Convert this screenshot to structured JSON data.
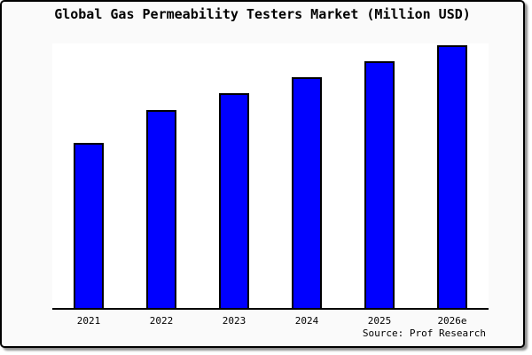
{
  "title": "Global Gas Permeability Testers Market (Million USD)",
  "source_note": "Source: Prof Research",
  "colors": {
    "card_background": "#fafafa",
    "plot_background": "#ffffff",
    "bar_fill": "#0000ff",
    "bar_border": "#000000",
    "axis": "#000000",
    "text": "#000000",
    "shadow": "#8f8f8f"
  },
  "chart_data": {
    "type": "bar",
    "title": "Global Gas Permeability Testers Market (Million USD)",
    "categories": [
      "2021",
      "2022",
      "2023",
      "2024",
      "2025",
      "2026e"
    ],
    "values": [
      62.3,
      74.8,
      81.3,
      87.3,
      93.3,
      99.5
    ],
    "value_basis": "relative bar height as percent of plot height; no numeric y-axis shown in chart",
    "xlabel": "",
    "ylabel": "",
    "ylim": [
      0,
      100
    ],
    "y_axis_visible": false,
    "gridlines": false,
    "legend_visible": false,
    "bar_color": "#0000ff",
    "bar_border_color": "#000000",
    "annotations": [
      "Source: Prof Research"
    ]
  }
}
